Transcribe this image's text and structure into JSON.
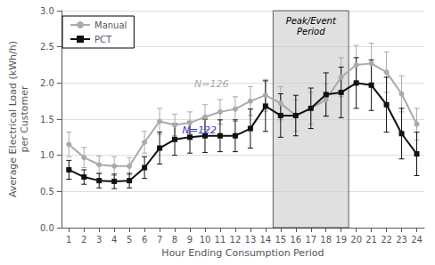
{
  "chart_data": {
    "type": "line",
    "x": [
      1,
      2,
      3,
      4,
      5,
      6,
      7,
      8,
      9,
      10,
      11,
      12,
      13,
      14,
      15,
      16,
      17,
      18,
      19,
      20,
      21,
      22,
      23,
      24
    ],
    "xlim": [
      0.5,
      24.5
    ],
    "xticks": [
      1,
      2,
      3,
      4,
      5,
      6,
      7,
      8,
      9,
      10,
      11,
      12,
      13,
      14,
      15,
      16,
      17,
      18,
      19,
      20,
      21,
      22,
      23,
      24
    ],
    "ylim": [
      0.0,
      3.0
    ],
    "yticks": [
      {
        "value": 0,
        "label": "0.0"
      },
      0.5,
      {
        "value": 1,
        "label": "1.0"
      },
      1.5,
      {
        "value": 2,
        "label": "2.0"
      },
      2.5,
      {
        "value": 3,
        "label": "3.0"
      }
    ],
    "xlabel": "Hour Ending Consumption Period",
    "ylabel": "Average Electrical Load (kWh/h)\nper Customer",
    "grid": "y",
    "legend": "upper left",
    "series": [
      {
        "name": "Manual",
        "color": "#aaaaaa",
        "marker": "circle",
        "values": [
          1.15,
          0.97,
          0.87,
          0.85,
          0.85,
          1.18,
          1.47,
          1.42,
          1.45,
          1.53,
          1.6,
          1.64,
          1.75,
          1.83,
          1.72,
          1.55,
          1.65,
          1.77,
          2.08,
          2.25,
          2.27,
          2.15,
          1.85,
          1.43
        ],
        "errors": [
          0.17,
          0.14,
          0.12,
          0.13,
          0.12,
          0.15,
          0.18,
          0.15,
          0.15,
          0.17,
          0.17,
          0.17,
          0.2,
          0.22,
          0.23,
          0.22,
          0.22,
          0.22,
          0.27,
          0.27,
          0.28,
          0.28,
          0.25,
          0.22
        ]
      },
      {
        "name": "PCT",
        "color": "#111111",
        "marker": "square",
        "values": [
          0.8,
          0.7,
          0.65,
          0.64,
          0.65,
          0.83,
          1.1,
          1.22,
          1.25,
          1.27,
          1.27,
          1.27,
          1.37,
          1.68,
          1.55,
          1.55,
          1.65,
          1.84,
          1.87,
          2.0,
          1.97,
          1.7,
          1.3,
          1.02
        ],
        "errors": [
          0.13,
          0.1,
          0.1,
          0.1,
          0.1,
          0.15,
          0.22,
          0.22,
          0.22,
          0.23,
          0.22,
          0.22,
          0.27,
          0.35,
          0.3,
          0.28,
          0.28,
          0.3,
          0.35,
          0.35,
          0.35,
          0.38,
          0.35,
          0.3
        ]
      }
    ],
    "regions": [
      {
        "x0": 14.5,
        "x1": 19.5,
        "label": "Peak/Event\nPeriod",
        "color": "#cccccc"
      }
    ],
    "annotations": [
      {
        "text": "N=126",
        "x": 9.3,
        "y": 1.92,
        "color": "#aaaaaa"
      },
      {
        "text": "N=122",
        "x": 8.5,
        "y": 1.28,
        "color": "#3333cc"
      }
    ]
  }
}
